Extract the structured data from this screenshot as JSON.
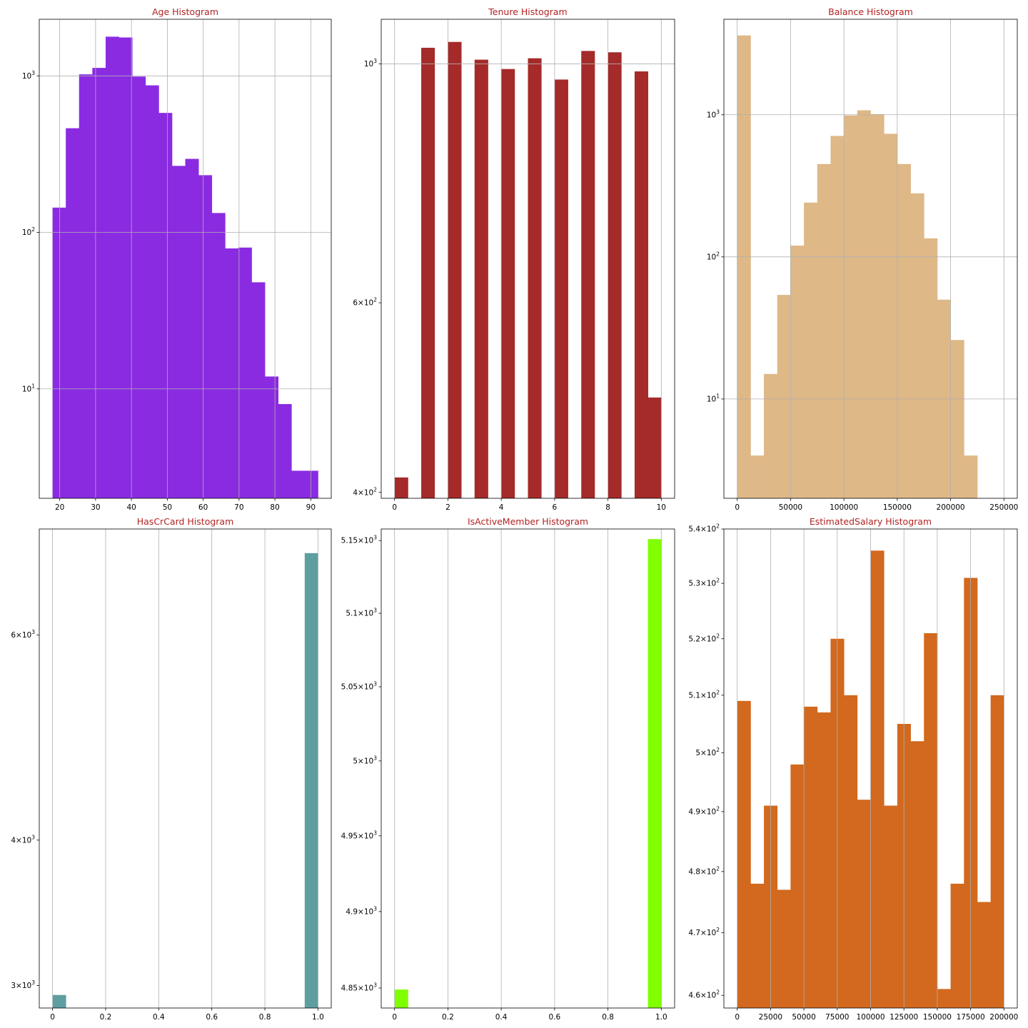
{
  "chart_data": [
    {
      "type": "bar",
      "title": "Age Histogram",
      "color": "#8a2be2",
      "yscale": "log",
      "xlim": [
        14.3,
        95.7
      ],
      "ylim": [
        2.0,
        2300
      ],
      "xticks": [
        20,
        30,
        40,
        50,
        60,
        70,
        80,
        90
      ],
      "yticks": [
        10,
        100,
        1000
      ],
      "grid": true,
      "bins": [
        {
          "x0": 18.0,
          "x1": 21.7,
          "count": 144
        },
        {
          "x0": 21.7,
          "x1": 25.4,
          "count": 463
        },
        {
          "x0": 25.4,
          "x1": 29.1,
          "count": 1023
        },
        {
          "x0": 29.1,
          "x1": 32.8,
          "count": 1125
        },
        {
          "x0": 32.8,
          "x1": 36.5,
          "count": 1780
        },
        {
          "x0": 36.5,
          "x1": 40.2,
          "count": 1760
        },
        {
          "x0": 40.2,
          "x1": 43.9,
          "count": 990
        },
        {
          "x0": 43.9,
          "x1": 47.6,
          "count": 870
        },
        {
          "x0": 47.6,
          "x1": 51.3,
          "count": 580
        },
        {
          "x0": 51.3,
          "x1": 55.0,
          "count": 266
        },
        {
          "x0": 55.0,
          "x1": 58.7,
          "count": 295
        },
        {
          "x0": 58.7,
          "x1": 62.4,
          "count": 232
        },
        {
          "x0": 62.4,
          "x1": 66.1,
          "count": 133
        },
        {
          "x0": 66.1,
          "x1": 69.8,
          "count": 79
        },
        {
          "x0": 69.8,
          "x1": 73.5,
          "count": 80
        },
        {
          "x0": 73.5,
          "x1": 77.2,
          "count": 48
        },
        {
          "x0": 77.2,
          "x1": 80.9,
          "count": 12
        },
        {
          "x0": 80.9,
          "x1": 84.6,
          "count": 8
        },
        {
          "x0": 84.6,
          "x1": 88.3,
          "count": 3
        },
        {
          "x0": 88.3,
          "x1": 92.0,
          "count": 3
        }
      ]
    },
    {
      "type": "bar",
      "title": "Tenure Histogram",
      "color": "#a52a2a",
      "yscale": "log",
      "xlim": [
        -0.5,
        10.5
      ],
      "ylim": [
        395,
        1100
      ],
      "xticks": [
        0,
        2,
        4,
        6,
        8,
        10
      ],
      "yticks": [
        400,
        600,
        1000
      ],
      "grid": true,
      "bins": [
        {
          "x0": 0.0,
          "x1": 0.5,
          "count": 413
        },
        {
          "x0": 1.0,
          "x1": 1.5,
          "count": 1035
        },
        {
          "x0": 2.0,
          "x1": 2.5,
          "count": 1048
        },
        {
          "x0": 3.0,
          "x1": 3.5,
          "count": 1009
        },
        {
          "x0": 4.0,
          "x1": 4.5,
          "count": 989
        },
        {
          "x0": 5.0,
          "x1": 5.5,
          "count": 1012
        },
        {
          "x0": 6.0,
          "x1": 6.5,
          "count": 967
        },
        {
          "x0": 7.0,
          "x1": 7.5,
          "count": 1028
        },
        {
          "x0": 8.0,
          "x1": 8.5,
          "count": 1025
        },
        {
          "x0": 9.0,
          "x1": 9.5,
          "count": 984
        },
        {
          "x0": 9.5,
          "x1": 10.0,
          "count": 490
        }
      ]
    },
    {
      "type": "bar",
      "title": "Balance Histogram",
      "color": "#deb887",
      "yscale": "log",
      "xlim": [
        -12500,
        262500
      ],
      "ylim": [
        2.0,
        4700
      ],
      "xticks": [
        0,
        50000,
        100000,
        150000,
        200000,
        250000
      ],
      "yticks": [
        10,
        100,
        1000
      ],
      "grid": true,
      "bins": [
        {
          "x0": 0,
          "x1": 12500,
          "count": 3617
        },
        {
          "x0": 12500,
          "x1": 25000,
          "count": 4
        },
        {
          "x0": 25000,
          "x1": 37500,
          "count": 15
        },
        {
          "x0": 37500,
          "x1": 50000,
          "count": 54
        },
        {
          "x0": 50000,
          "x1": 62500,
          "count": 120
        },
        {
          "x0": 62500,
          "x1": 75000,
          "count": 241
        },
        {
          "x0": 75000,
          "x1": 87500,
          "count": 450
        },
        {
          "x0": 87500,
          "x1": 100000,
          "count": 710
        },
        {
          "x0": 100000,
          "x1": 112500,
          "count": 990
        },
        {
          "x0": 112500,
          "x1": 125000,
          "count": 1075
        },
        {
          "x0": 125000,
          "x1": 137500,
          "count": 1010
        },
        {
          "x0": 137500,
          "x1": 150000,
          "count": 735
        },
        {
          "x0": 150000,
          "x1": 162500,
          "count": 450
        },
        {
          "x0": 162500,
          "x1": 175000,
          "count": 280
        },
        {
          "x0": 175000,
          "x1": 187500,
          "count": 135
        },
        {
          "x0": 187500,
          "x1": 200000,
          "count": 50
        },
        {
          "x0": 200000,
          "x1": 212500,
          "count": 26
        },
        {
          "x0": 212500,
          "x1": 225000,
          "count": 4
        },
        {
          "x0": 237500,
          "x1": 250000,
          "count": 2
        }
      ]
    },
    {
      "type": "bar",
      "title": "HasCrCard Histogram",
      "color": "#5f9ea0",
      "yscale": "log",
      "xlim": [
        -0.05,
        1.05
      ],
      "ylim": [
        2870,
        7400
      ],
      "xticks": [
        0.0,
        0.2,
        0.4,
        0.6,
        0.8,
        1.0
      ],
      "yticks": [
        3000,
        4000,
        6000
      ],
      "grid": true,
      "bins": [
        {
          "x0": 0.0,
          "x1": 0.05,
          "count": 2945
        },
        {
          "x0": 0.95,
          "x1": 1.0,
          "count": 7055
        }
      ]
    },
    {
      "type": "bar",
      "title": "IsActiveMember Histogram",
      "color": "#7fff00",
      "yscale": "log",
      "xlim": [
        -0.05,
        1.05
      ],
      "ylim": [
        4837,
        5158
      ],
      "xticks": [
        0.0,
        0.2,
        0.4,
        0.6,
        0.8,
        1.0
      ],
      "yticks": [
        4850,
        4900,
        4950,
        5000,
        5050,
        5100,
        5150
      ],
      "grid": true,
      "bins": [
        {
          "x0": 0.0,
          "x1": 0.05,
          "count": 4849
        },
        {
          "x0": 0.95,
          "x1": 1.0,
          "count": 5151
        }
      ]
    },
    {
      "type": "bar",
      "title": "EstimatedSalary Histogram",
      "color": "#d2691e",
      "yscale": "log",
      "xlim": [
        -10000,
        210000
      ],
      "ylim": [
        458,
        540
      ],
      "xticks": [
        0,
        25000,
        50000,
        75000,
        100000,
        125000,
        150000,
        175000,
        200000
      ],
      "yticks": [
        460,
        470,
        480,
        490,
        500,
        510,
        520,
        530,
        540
      ],
      "grid": true,
      "bins": [
        {
          "x0": 0,
          "x1": 10000,
          "count": 509
        },
        {
          "x0": 10000,
          "x1": 20000,
          "count": 478
        },
        {
          "x0": 20000,
          "x1": 30000,
          "count": 491
        },
        {
          "x0": 30000,
          "x1": 40000,
          "count": 477
        },
        {
          "x0": 40000,
          "x1": 50000,
          "count": 498
        },
        {
          "x0": 50000,
          "x1": 60000,
          "count": 508
        },
        {
          "x0": 60000,
          "x1": 70000,
          "count": 507
        },
        {
          "x0": 70000,
          "x1": 80000,
          "count": 520
        },
        {
          "x0": 80000,
          "x1": 90000,
          "count": 510
        },
        {
          "x0": 90000,
          "x1": 100000,
          "count": 492
        },
        {
          "x0": 100000,
          "x1": 110000,
          "count": 536
        },
        {
          "x0": 110000,
          "x1": 120000,
          "count": 491
        },
        {
          "x0": 120000,
          "x1": 130000,
          "count": 505
        },
        {
          "x0": 130000,
          "x1": 140000,
          "count": 502
        },
        {
          "x0": 140000,
          "x1": 150000,
          "count": 521
        },
        {
          "x0": 150000,
          "x1": 160000,
          "count": 461
        },
        {
          "x0": 160000,
          "x1": 170000,
          "count": 478
        },
        {
          "x0": 170000,
          "x1": 180000,
          "count": 531
        },
        {
          "x0": 180000,
          "x1": 190000,
          "count": 475
        },
        {
          "x0": 190000,
          "x1": 200000,
          "count": 510
        }
      ]
    }
  ]
}
